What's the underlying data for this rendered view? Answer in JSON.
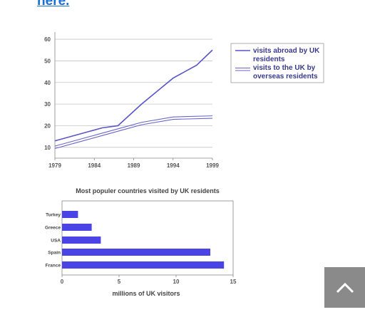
{
  "page": {
    "link_text": "here.",
    "scroll_top_icon": "chevron-up-icon"
  },
  "chart_data": [
    {
      "type": "line",
      "title": "",
      "xlabel": "",
      "ylabel": "",
      "x_ticks": [
        "1979",
        "1984",
        "1989",
        "1994",
        "1999"
      ],
      "y_ticks": [
        10,
        20,
        30,
        40,
        50,
        60
      ],
      "xlim": [
        1979,
        1999
      ],
      "ylim": [
        5,
        62
      ],
      "grid": true,
      "legend_position": "right",
      "series": [
        {
          "name": "visits abroad by UK residents",
          "x": [
            1979,
            1982,
            1985,
            1987,
            1990,
            1994,
            1997,
            1999
          ],
          "y": [
            13,
            16,
            19,
            20,
            30,
            42,
            48,
            55
          ],
          "color": "#5a55c8",
          "style": "single"
        },
        {
          "name": "visits to the UK by overseas residents",
          "x": [
            1979,
            1982,
            1985,
            1988,
            1990,
            1994,
            1999
          ],
          "y": [
            10,
            13,
            16,
            19,
            21,
            23.5,
            24
          ],
          "color": "#6a66c8",
          "style": "double"
        }
      ]
    },
    {
      "type": "bar",
      "orientation": "horizontal",
      "title": "Most populer countries visited by UK residents",
      "xlabel": "millions of UK visitors",
      "ylabel": "",
      "categories": [
        "Turkey",
        "Greece",
        "USA",
        "Spain",
        "France"
      ],
      "values": [
        1.4,
        2.6,
        3.4,
        13,
        14.2
      ],
      "x_ticks": [
        0,
        5,
        10,
        15
      ],
      "xlim": [
        0,
        15
      ],
      "color": "#4a43e6"
    }
  ]
}
